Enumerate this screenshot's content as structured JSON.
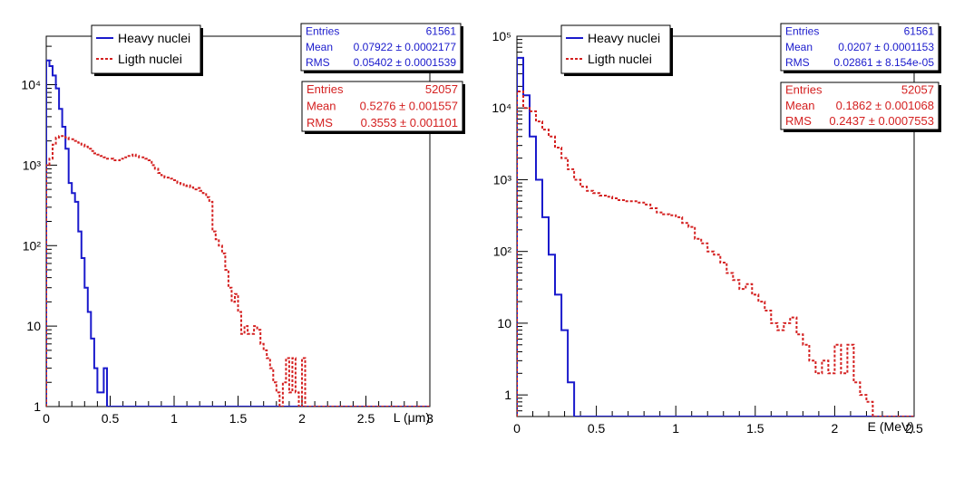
{
  "colors": {
    "heavy": "#1a1acc",
    "light": "#d42020",
    "frame": "#000000"
  },
  "chart_data": [
    {
      "type": "histogram",
      "xlabel": "L (μm)",
      "xlim": [
        0,
        3
      ],
      "ylim": [
        1,
        40000
      ],
      "yscale": "log",
      "x_ticks": [
        "0",
        "0.5",
        "1",
        "1.5",
        "2",
        "2.5",
        "3"
      ],
      "y_ticks": [
        "1",
        "10",
        "10²",
        "10³",
        "10⁴"
      ],
      "bin_width": 0.025,
      "legend": {
        "position": "top-left",
        "entries": [
          "Heavy nuclei",
          "Ligth nuclei"
        ]
      },
      "series": [
        {
          "name": "Heavy nuclei",
          "color": "#1a1acc",
          "style": "solid",
          "stats": {
            "entries_label": "Entries",
            "entries": "61561",
            "mean_label": "Mean",
            "mean": "0.07922 ± 0.0002177",
            "rms_label": "RMS",
            "rms": "0.05402 ± 0.0001539"
          },
          "x": [
            0.025,
            0.05,
            0.075,
            0.1,
            0.125,
            0.15,
            0.175,
            0.2,
            0.225,
            0.25,
            0.275,
            0.3,
            0.325,
            0.35,
            0.375,
            0.4,
            0.425,
            0.45,
            0.475,
            0.5
          ],
          "values": [
            20000,
            17000,
            13000,
            9000,
            5000,
            3000,
            1600,
            600,
            450,
            350,
            150,
            70,
            30,
            15,
            7,
            3,
            1.5,
            1.5,
            3,
            1
          ]
        },
        {
          "name": "Ligth nuclei",
          "color": "#d42020",
          "style": "dashed",
          "stats": {
            "entries_label": "Entries",
            "entries": "52057",
            "mean_label": "Mean",
            "mean": "0.5276 ± 0.001557",
            "rms_label": "RMS",
            "rms": "0.3553 ± 0.001101"
          },
          "x": [
            0.025,
            0.05,
            0.075,
            0.1,
            0.125,
            0.15,
            0.175,
            0.2,
            0.225,
            0.25,
            0.275,
            0.3,
            0.325,
            0.35,
            0.375,
            0.4,
            0.425,
            0.45,
            0.475,
            0.5,
            0.525,
            0.55,
            0.575,
            0.6,
            0.625,
            0.65,
            0.675,
            0.7,
            0.725,
            0.75,
            0.775,
            0.8,
            0.825,
            0.85,
            0.875,
            0.9,
            0.925,
            0.95,
            0.975,
            1.0,
            1.025,
            1.05,
            1.075,
            1.1,
            1.125,
            1.15,
            1.175,
            1.2,
            1.225,
            1.25,
            1.275,
            1.3,
            1.325,
            1.35,
            1.375,
            1.4,
            1.425,
            1.45,
            1.475,
            1.5,
            1.525,
            1.55,
            1.575,
            1.6,
            1.625,
            1.65,
            1.675,
            1.7,
            1.725,
            1.75,
            1.775,
            1.8,
            1.825,
            1.85,
            1.875,
            1.9,
            1.925,
            1.95,
            1.975,
            2.0,
            2.025,
            2.05,
            2.075,
            2.1
          ],
          "values": [
            1000,
            1200,
            1800,
            2200,
            2300,
            2300,
            2200,
            2100,
            2100,
            2000,
            1900,
            1800,
            1700,
            1600,
            1500,
            1400,
            1350,
            1300,
            1250,
            1200,
            1200,
            1150,
            1150,
            1200,
            1250,
            1300,
            1300,
            1350,
            1300,
            1250,
            1250,
            1200,
            1150,
            1000,
            900,
            800,
            750,
            700,
            700,
            680,
            650,
            600,
            580,
            550,
            560,
            530,
            500,
            520,
            480,
            450,
            400,
            350,
            150,
            120,
            100,
            80,
            50,
            30,
            20,
            25,
            15,
            8,
            10,
            8,
            8,
            10,
            9,
            6,
            5,
            4,
            3,
            2,
            1.5,
            1,
            2,
            4,
            1.5,
            4,
            1.5,
            1,
            4,
            1,
            1,
            1
          ]
        }
      ]
    },
    {
      "type": "histogram",
      "xlabel": "E (MeV)",
      "xlim": [
        0,
        2.5
      ],
      "ylim": [
        0.5,
        100000
      ],
      "yscale": "log",
      "x_ticks": [
        "0",
        "0.5",
        "1",
        "1.5",
        "2",
        "2.5"
      ],
      "y_ticks": [
        "1",
        "10",
        "10²",
        "10³",
        "10⁴",
        "10⁵"
      ],
      "bin_width": 0.04,
      "legend": {
        "position": "top-left",
        "entries": [
          "Heavy nuclei",
          "Ligth nuclei"
        ]
      },
      "series": [
        {
          "name": "Heavy nuclei",
          "color": "#1a1acc",
          "style": "solid",
          "stats": {
            "entries_label": "Entries",
            "entries": "61561",
            "mean_label": "Mean",
            "mean": "0.0207 ± 0.0001153",
            "rms_label": "RMS",
            "rms": "0.02861 ± 8.154e-05"
          },
          "x": [
            0.04,
            0.08,
            0.12,
            0.16,
            0.2,
            0.24,
            0.28,
            0.32,
            0.36,
            0.4
          ],
          "values": [
            50000,
            15000,
            4000,
            1000,
            300,
            90,
            25,
            8,
            1.5,
            0.5
          ]
        },
        {
          "name": "Ligth nuclei",
          "color": "#d42020",
          "style": "dashed",
          "stats": {
            "entries_label": "Entries",
            "entries": "52057",
            "mean_label": "Mean",
            "mean": "0.1862 ± 0.001068",
            "rms_label": "RMS",
            "rms": "0.2437 ± 0.0007553"
          },
          "x": [
            0.04,
            0.08,
            0.12,
            0.16,
            0.2,
            0.24,
            0.28,
            0.32,
            0.36,
            0.4,
            0.44,
            0.48,
            0.52,
            0.56,
            0.6,
            0.64,
            0.68,
            0.72,
            0.76,
            0.8,
            0.84,
            0.88,
            0.92,
            0.96,
            1.0,
            1.04,
            1.08,
            1.12,
            1.16,
            1.2,
            1.24,
            1.28,
            1.32,
            1.36,
            1.4,
            1.44,
            1.48,
            1.52,
            1.56,
            1.6,
            1.64,
            1.68,
            1.72,
            1.76,
            1.8,
            1.84,
            1.88,
            1.92,
            1.96,
            2.0,
            2.04,
            2.08,
            2.12,
            2.16,
            2.2,
            2.24
          ],
          "values": [
            17000,
            10000,
            9000,
            6500,
            5000,
            4000,
            2800,
            2000,
            1400,
            1000,
            800,
            700,
            650,
            600,
            580,
            550,
            520,
            500,
            500,
            480,
            450,
            400,
            350,
            330,
            320,
            300,
            250,
            220,
            150,
            130,
            100,
            90,
            70,
            50,
            40,
            30,
            35,
            25,
            20,
            15,
            10,
            8,
            10,
            12,
            7,
            5,
            3,
            2,
            3,
            2,
            5,
            2,
            5,
            1.5,
            1,
            0.8
          ]
        }
      ]
    }
  ]
}
